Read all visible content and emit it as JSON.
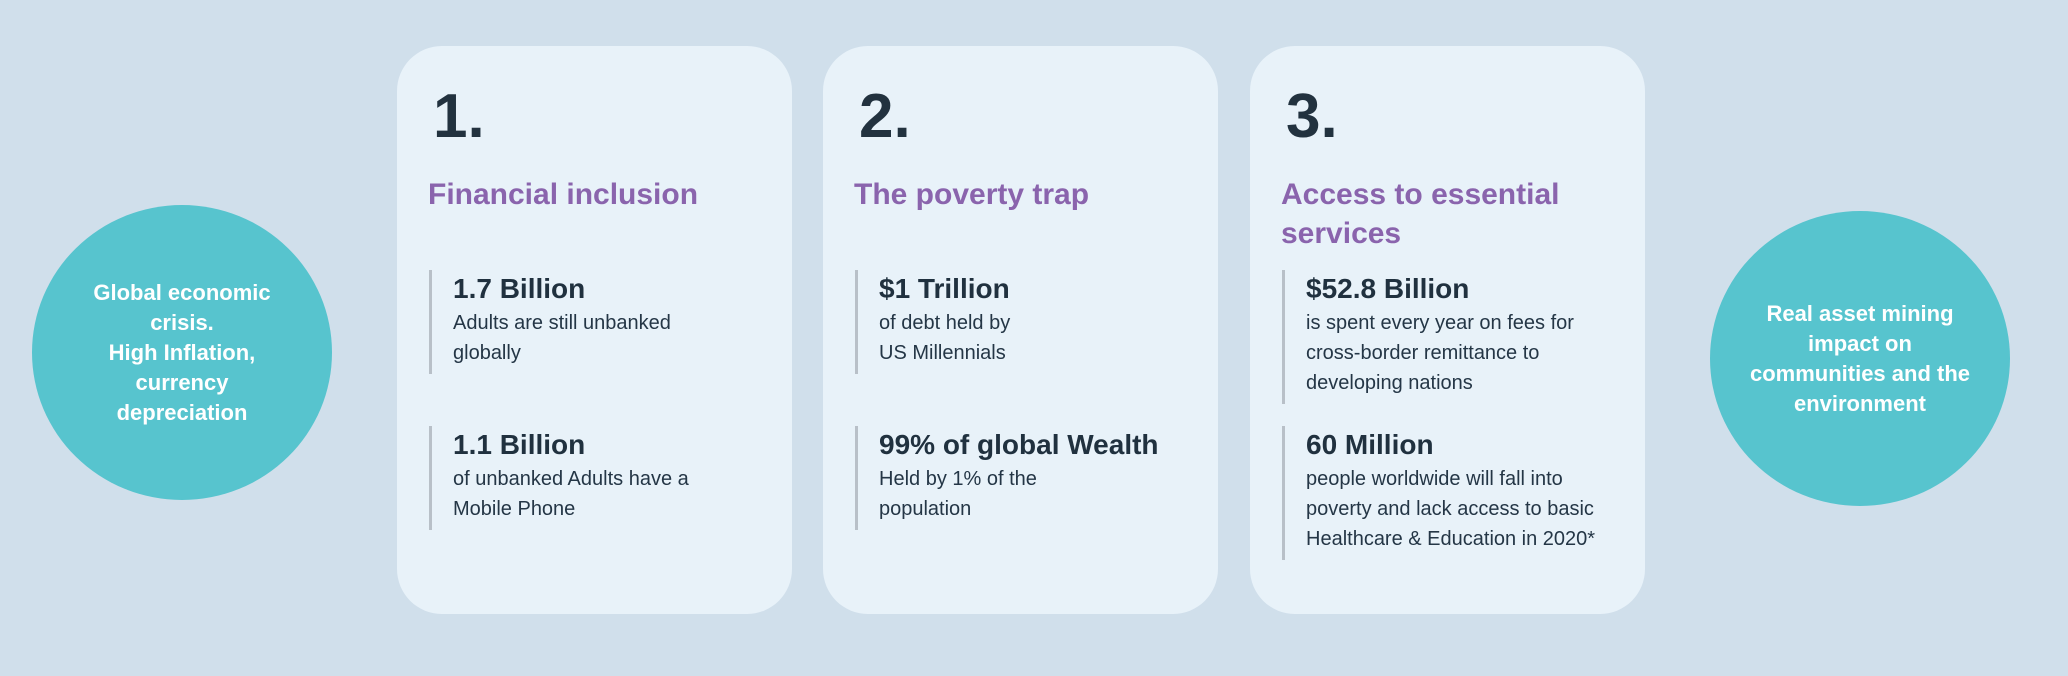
{
  "page": {
    "background_color": "#d0dfeb",
    "card_color": "#e8f2f9",
    "circle_color": "#57c4ce",
    "heading_color": "#8a64ad",
    "text_color": "#22323f",
    "divider_color": "#b8c0c8"
  },
  "left_circle": {
    "lines": [
      "Global economic",
      "crisis.",
      "High Inflation,",
      "currency",
      "depreciation"
    ]
  },
  "right_circle": {
    "lines": [
      "Real asset  mining",
      "impact on",
      "communities and the",
      "environment"
    ]
  },
  "cards": [
    {
      "number": "1.",
      "title": "Financial inclusion",
      "stats": [
        {
          "value": "1.7 Billion",
          "lines": [
            "Adults are still unbanked",
            "globally"
          ]
        },
        {
          "value": "1.1 Billion",
          "lines": [
            "of unbanked Adults have a",
            "Mobile Phone"
          ]
        }
      ]
    },
    {
      "number": "2.",
      "title": "The poverty trap",
      "stats": [
        {
          "value": "$1 Trillion",
          "lines": [
            "of debt held by",
            "US Millennials"
          ]
        },
        {
          "value": "99% of global Wealth",
          "lines": [
            "Held by 1% of the",
            "population"
          ]
        }
      ]
    },
    {
      "number": "3.",
      "title": "Access to essential services",
      "stats": [
        {
          "value": "$52.8 Billion",
          "lines": [
            "is spent every year on fees for",
            "cross-border remittance to",
            "developing nations"
          ]
        },
        {
          "value": "60 Million",
          "lines": [
            "people worldwide will fall into",
            "poverty and lack access to basic",
            "Healthcare & Education in 2020*"
          ]
        }
      ]
    }
  ]
}
